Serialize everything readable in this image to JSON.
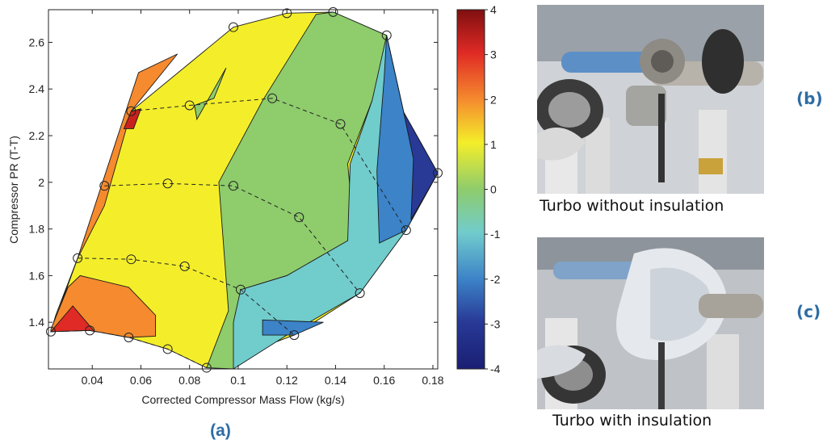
{
  "chart_data": {
    "type": "contour",
    "xlabel": "Corrected Compressor Mass Flow (kg/s)",
    "ylabel": "Compressor PR (T-T)",
    "xlim": [
      0.022,
      0.182
    ],
    "ylim": [
      1.2,
      2.74
    ],
    "x_ticks": [
      "0.04",
      "0.06",
      "0.08",
      "0.1",
      "0.12",
      "0.14",
      "0.16",
      "0.18"
    ],
    "x_tick_values": [
      0.04,
      0.06,
      0.08,
      0.1,
      0.12,
      0.14,
      0.16,
      0.18
    ],
    "y_ticks": [
      "1.4",
      "1.6",
      "1.8",
      "2",
      "2.2",
      "2.4",
      "2.6"
    ],
    "y_tick_values": [
      1.4,
      1.6,
      1.8,
      2.0,
      2.2,
      2.4,
      2.6
    ],
    "colorbar": {
      "range": [
        -4,
        4
      ],
      "ticks": [
        "4",
        "3",
        "2",
        "1",
        "0",
        "-1",
        "-2",
        "-3",
        "-4"
      ],
      "tick_values": [
        4,
        3,
        2,
        1,
        0,
        -1,
        -2,
        -3,
        -4
      ]
    },
    "measurement_points": [
      {
        "x": 0.023,
        "y": 1.36
      },
      {
        "x": 0.039,
        "y": 1.365
      },
      {
        "x": 0.055,
        "y": 1.335
      },
      {
        "x": 0.071,
        "y": 1.285
      },
      {
        "x": 0.087,
        "y": 1.205
      },
      {
        "x": 0.123,
        "y": 1.345
      },
      {
        "x": 0.15,
        "y": 1.525
      },
      {
        "x": 0.169,
        "y": 1.795
      },
      {
        "x": 0.182,
        "y": 2.04
      },
      {
        "x": 0.034,
        "y": 1.675
      },
      {
        "x": 0.056,
        "y": 1.67
      },
      {
        "x": 0.078,
        "y": 1.64
      },
      {
        "x": 0.101,
        "y": 1.54
      },
      {
        "x": 0.045,
        "y": 1.985
      },
      {
        "x": 0.071,
        "y": 1.995
      },
      {
        "x": 0.098,
        "y": 1.985
      },
      {
        "x": 0.125,
        "y": 1.85
      },
      {
        "x": 0.056,
        "y": 2.305
      },
      {
        "x": 0.08,
        "y": 2.33
      },
      {
        "x": 0.114,
        "y": 2.36
      },
      {
        "x": 0.142,
        "y": 2.25
      },
      {
        "x": 0.098,
        "y": 2.665
      },
      {
        "x": 0.12,
        "y": 2.725
      },
      {
        "x": 0.139,
        "y": 2.73
      },
      {
        "x": 0.161,
        "y": 2.63
      }
    ],
    "speed_lines": [
      [
        [
          0.023,
          1.36
        ],
        [
          0.039,
          1.365
        ],
        [
          0.055,
          1.335
        ],
        [
          0.071,
          1.285
        ],
        [
          0.087,
          1.205
        ]
      ],
      [
        [
          0.034,
          1.675
        ],
        [
          0.056,
          1.67
        ],
        [
          0.078,
          1.64
        ],
        [
          0.101,
          1.54
        ],
        [
          0.123,
          1.345
        ]
      ],
      [
        [
          0.045,
          1.985
        ],
        [
          0.071,
          1.995
        ],
        [
          0.098,
          1.985
        ],
        [
          0.125,
          1.85
        ],
        [
          0.15,
          1.525
        ]
      ],
      [
        [
          0.056,
          2.305
        ],
        [
          0.08,
          2.33
        ],
        [
          0.114,
          2.36
        ],
        [
          0.142,
          2.25
        ],
        [
          0.169,
          1.795
        ]
      ]
    ],
    "contour_regions": [
      {
        "level": 0.5,
        "color": "#f4ee2a",
        "points": [
          [
            0.023,
            1.36
          ],
          [
            0.034,
            1.675
          ],
          [
            0.056,
            2.305
          ],
          [
            0.098,
            2.665
          ],
          [
            0.12,
            2.725
          ],
          [
            0.139,
            2.73
          ],
          [
            0.161,
            2.63
          ],
          [
            0.168,
            2.3
          ],
          [
            0.182,
            2.04
          ],
          [
            0.169,
            1.795
          ],
          [
            0.15,
            1.525
          ],
          [
            0.123,
            1.345
          ],
          [
            0.087,
            1.205
          ],
          [
            0.071,
            1.285
          ],
          [
            0.055,
            1.335
          ],
          [
            0.039,
            1.365
          ]
        ]
      },
      {
        "level": 1.5,
        "color": "#f58a2e",
        "points": [
          [
            0.023,
            1.36
          ],
          [
            0.034,
            1.675
          ],
          [
            0.045,
            1.9
          ],
          [
            0.056,
            2.305
          ],
          [
            0.075,
            2.55
          ],
          [
            0.059,
            2.47
          ],
          [
            0.034,
            1.675
          ],
          [
            0.025,
            1.43
          ]
        ]
      },
      {
        "level": 1.5,
        "color": "#f58a2e",
        "points": [
          [
            0.023,
            1.37
          ],
          [
            0.023,
            1.36
          ],
          [
            0.039,
            1.365
          ],
          [
            0.055,
            1.335
          ],
          [
            0.066,
            1.34
          ],
          [
            0.066,
            1.43
          ],
          [
            0.055,
            1.55
          ],
          [
            0.035,
            1.6
          ],
          [
            0.03,
            1.55
          ]
        ]
      },
      {
        "level": 2.5,
        "color": "#e02a25",
        "points": [
          [
            0.023,
            1.36
          ],
          [
            0.039,
            1.365
          ],
          [
            0.041,
            1.36
          ],
          [
            0.032,
            1.47
          ]
        ]
      },
      {
        "level": 2.5,
        "color": "#c8221f",
        "points": [
          [
            0.056,
            2.305
          ],
          [
            0.06,
            2.315
          ],
          [
            0.057,
            2.23
          ],
          [
            0.053,
            2.23
          ]
        ]
      },
      {
        "level": -0.5,
        "color": "#8ecc6c",
        "points": [
          [
            0.139,
            2.73
          ],
          [
            0.161,
            2.63
          ],
          [
            0.168,
            2.3
          ],
          [
            0.155,
            2.35
          ],
          [
            0.145,
            2.08
          ],
          [
            0.15,
            1.525
          ],
          [
            0.12,
            1.6
          ],
          [
            0.101,
            1.54
          ],
          [
            0.098,
            1.2
          ],
          [
            0.087,
            1.205
          ],
          [
            0.096,
            1.45
          ],
          [
            0.092,
            2.0
          ],
          [
            0.11,
            2.35
          ],
          [
            0.132,
            2.72
          ]
        ]
      },
      {
        "level": -0.5,
        "color": "#8ecc6c",
        "points": [
          [
            0.082,
            2.33
          ],
          [
            0.09,
            2.36
          ],
          [
            0.095,
            2.49
          ],
          [
            0.083,
            2.27
          ]
        ]
      },
      {
        "level": -1.5,
        "color": "#71cccc",
        "points": [
          [
            0.161,
            2.63
          ],
          [
            0.168,
            2.3
          ],
          [
            0.182,
            2.04
          ],
          [
            0.169,
            1.795
          ],
          [
            0.15,
            1.525
          ],
          [
            0.12,
            1.345
          ],
          [
            0.098,
            1.2
          ],
          [
            0.098,
            1.4
          ],
          [
            0.101,
            1.54
          ],
          [
            0.12,
            1.6
          ],
          [
            0.145,
            1.75
          ],
          [
            0.146,
            2.08
          ],
          [
            0.155,
            2.35
          ]
        ]
      },
      {
        "level": -2.5,
        "color": "#3c83c8",
        "points": [
          [
            0.161,
            2.63
          ],
          [
            0.168,
            2.3
          ],
          [
            0.182,
            2.04
          ],
          [
            0.169,
            1.795
          ],
          [
            0.158,
            1.74
          ],
          [
            0.157,
            2.05
          ],
          [
            0.16,
            2.45
          ]
        ]
      },
      {
        "level": -2.5,
        "color": "#3c83c8",
        "points": [
          [
            0.11,
            1.41
          ],
          [
            0.135,
            1.4
          ],
          [
            0.123,
            1.345
          ],
          [
            0.11,
            1.345
          ]
        ]
      },
      {
        "level": -3.5,
        "color": "#283996",
        "points": [
          [
            0.168,
            2.3
          ],
          [
            0.182,
            2.04
          ],
          [
            0.171,
            1.84
          ],
          [
            0.172,
            2.1
          ]
        ]
      }
    ]
  },
  "captions": {
    "panel_a": "(a)",
    "panel_b": "(b)",
    "panel_c": "(c)",
    "photo_b": "Turbo without insulation",
    "photo_c": "Turbo with insulation"
  },
  "colors": {
    "accent": "#2e6da4"
  }
}
